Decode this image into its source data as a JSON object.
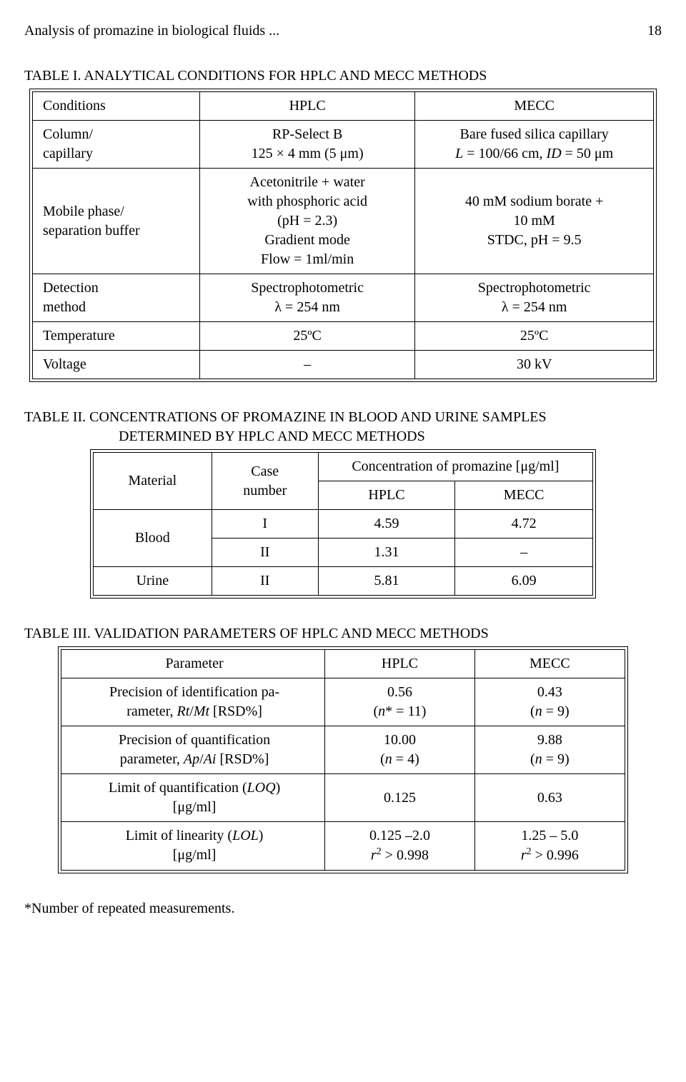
{
  "header": {
    "running_title": "Analysis of promazine in biological fluids ...",
    "page": "18"
  },
  "table1": {
    "caption": "TABLE I. ANALYTICAL CONDITIONS FOR HPLC AND MECC METHODS",
    "headers": [
      "Conditions",
      "HPLC",
      "MECC"
    ],
    "rows": [
      {
        "c0": "Column/\ncapillary",
        "c1": "RP-Select B\n125 × 4 mm (5 μm)",
        "c2_line1": "Bare fused silica capillary",
        "c2_line2_pre": "L",
        "c2_line2_mid": " = 100/66 cm, ",
        "c2_line2_id": "ID",
        "c2_line2_post": " = 50 μm"
      },
      {
        "c0": "Mobile phase/\nseparation buffer",
        "c1": "Acetonitrile + water\nwith phosphoric acid\n(pH = 2.3)\nGradient mode\nFlow = 1ml/min",
        "c2": "40 mM sodium borate +\n10 mM\nSTDC, pH = 9.5"
      },
      {
        "c0": "Detection\nmethod",
        "c1": "Spectrophotometric\nλ = 254 nm",
        "c2": "Spectrophotometric\nλ = 254 nm"
      },
      {
        "c0": "Temperature",
        "c1": "25ºC",
        "c2": "25ºC"
      },
      {
        "c0": "Voltage",
        "c1": "–",
        "c2": "30 kV"
      }
    ]
  },
  "table2": {
    "caption_line1": "TABLE II. CONCENTRATIONS OF PROMAZINE IN BLOOD AND URINE SAMPLES",
    "caption_line2": "DETERMINED BY HPLC AND MECC METHODS",
    "h_material": "Material",
    "h_case": "Case\nnumber",
    "h_conc": "Concentration of promazine [μg/ml]",
    "h_hplc": "HPLC",
    "h_mecc": "MECC",
    "rows": [
      {
        "mat": "Blood",
        "case": "I",
        "hplc": "4.59",
        "mecc": "4.72"
      },
      {
        "mat": "",
        "case": "II",
        "hplc": "1.31",
        "mecc": "–"
      },
      {
        "mat": "Urine",
        "case": "II",
        "hplc": "5.81",
        "mecc": "6.09"
      }
    ]
  },
  "table3": {
    "caption": "TABLE III. VALIDATION PARAMETERS OF HPLC AND MECC METHODS",
    "headers": [
      "Parameter",
      "HPLC",
      "MECC"
    ],
    "rows": [
      {
        "p_l1": "Precision of identification pa-",
        "p_l2_pre": "rameter, ",
        "p_l2_i1": "Rt",
        "p_l2_mid": "/",
        "p_l2_i2": "Mt",
        "p_l2_post": " [RSD%]",
        "hplc_l1": "0.56",
        "hplc_l2_pre": "(",
        "hplc_l2_n": "n",
        "hplc_l2_post": "* = 11)",
        "mecc_l1": "0.43",
        "mecc_l2_pre": "(",
        "mecc_l2_n": "n",
        "mecc_l2_post": " = 9)"
      },
      {
        "p_l1": "Precision of quantification",
        "p_l2_pre": "parameter, ",
        "p_l2_i1": "Ap",
        "p_l2_mid": "/",
        "p_l2_i2": "Ai",
        "p_l2_post": " [RSD%]",
        "hplc_l1": "10.00",
        "hplc_l2_pre": "(",
        "hplc_l2_n": "n",
        "hplc_l2_post": " = 4)",
        "mecc_l1": "9.88",
        "mecc_l2_pre": "(",
        "mecc_l2_n": "n",
        "mecc_l2_post": " = 9)"
      },
      {
        "p_l1_pre": "Limit of quantification (",
        "p_l1_i": "LOQ",
        "p_l1_post": ")",
        "p_l2": "[μg/ml]",
        "hplc": "0.125",
        "mecc": "0.63"
      },
      {
        "p_l1_pre": "Limit of linearity (",
        "p_l1_i": "LOL",
        "p_l1_post": ")",
        "p_l2": "[μg/ml]",
        "hplc_l1": "0.125 –2.0",
        "hplc_l2_i": "r",
        "hplc_l2_post": "  > 0.998",
        "mecc_l1": "1.25 – 5.0",
        "mecc_l2_i": "r",
        "mecc_l2_post": "  > 0.996"
      }
    ]
  },
  "footnote": "*Number of repeated measurements."
}
